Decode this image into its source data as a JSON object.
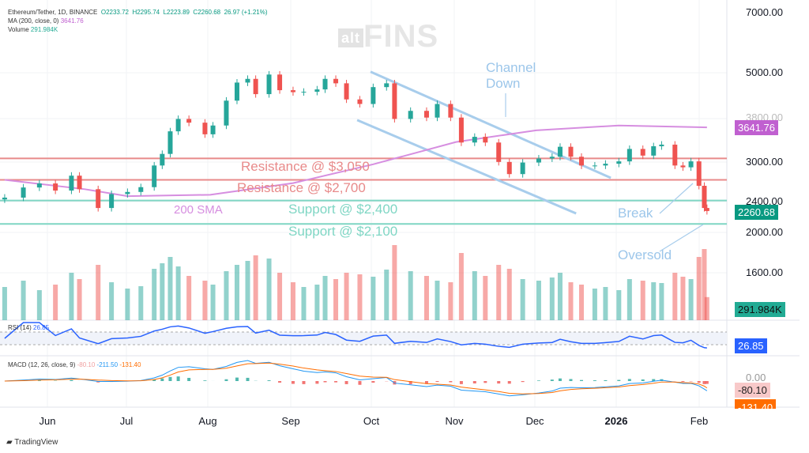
{
  "header": {
    "symbol": "Ethereum/Tether, 1D, BINANCE",
    "open": "O2233.72",
    "high": "H2295.74",
    "low": "L2223.89",
    "close": "C2260.68",
    "change": "26.97 (+1.21%)",
    "ma_label": "MA (200, close, 0)",
    "ma_value": "3641.76",
    "volume_label": "Volume",
    "volume_value": "291.984K",
    "rsi_label": "RSI (14)",
    "rsi_value": "26.85",
    "macd_label": "MACD (12, 26, close, 9)",
    "macd_hist": "-80.10",
    "macd_line": "-211.50",
    "macd_signal": "-131.40"
  },
  "watermark": "altFINS",
  "footer": "TradingView",
  "colors": {
    "up": "#26a69a",
    "down": "#ef5350",
    "sma": "#d68ee0",
    "resistance": "#e88a8a",
    "support": "#7fd6c4",
    "channel": "#a8cdec",
    "rsi": "#2962ff",
    "macd": "#2196f3",
    "signal": "#ff6d00"
  },
  "right_axis": {
    "labels": [
      "7000.00",
      "5000.00",
      "3800.00",
      "3000.00",
      "2400.00",
      "2000.00",
      "1600.00"
    ],
    "sma_tag": "3641.76",
    "price_tag": "2260.68",
    "volume_tag": "291.984K",
    "rsi_tag": "26.85",
    "macd_zero": "0.00",
    "macd_hist_tag": "-80.10",
    "macd_signal_tag": "-131.40"
  },
  "annotations": {
    "channel": "Channel\nDown",
    "break": "Break",
    "oversold": "Oversold",
    "sma": "200 SMA",
    "res1": "Resistance @ $3,050",
    "res2": "Resistance @ $2,700",
    "sup1": "Support @ $2,400",
    "sup2": "Support @ $2,100"
  },
  "chart_data": {
    "type": "candlestick",
    "scale": "log",
    "ylim": [
      1600,
      7000
    ],
    "x_ticks": [
      "Jun",
      "Jul",
      "Aug",
      "Sep",
      "Oct",
      "Nov",
      "Dec",
      "2026",
      "Feb"
    ],
    "dates": [
      "2025-05-16",
      "2025-05-23",
      "2025-05-29",
      "2025-06-04",
      "2025-06-10",
      "2025-06-13",
      "2025-06-20",
      "2025-06-25",
      "2025-07-01",
      "2025-07-06",
      "2025-07-11",
      "2025-07-14",
      "2025-07-17",
      "2025-07-20",
      "2025-07-24",
      "2025-07-30",
      "2025-08-02",
      "2025-08-07",
      "2025-08-11",
      "2025-08-15",
      "2025-08-18",
      "2025-08-23",
      "2025-08-27",
      "2025-09-01",
      "2025-09-05",
      "2025-09-10",
      "2025-09-13",
      "2025-09-17",
      "2025-09-21",
      "2025-09-26",
      "2025-10-01",
      "2025-10-06",
      "2025-10-09",
      "2025-10-15",
      "2025-10-21",
      "2025-10-25",
      "2025-10-30",
      "2025-11-03",
      "2025-11-08",
      "2025-11-12",
      "2025-11-17",
      "2025-11-21",
      "2025-11-26",
      "2025-12-02",
      "2025-12-07",
      "2025-12-10",
      "2025-12-14",
      "2025-12-18",
      "2025-12-23",
      "2025-12-27",
      "2026-01-01",
      "2026-01-05",
      "2026-01-10",
      "2026-01-14",
      "2026-01-17",
      "2026-01-22",
      "2026-01-25",
      "2026-01-28",
      "2026-01-31",
      "2026-02-02",
      "2026-02-03"
    ],
    "close": [
      2440,
      2585,
      2645,
      2540,
      2765,
      2560,
      2300,
      2490,
      2520,
      2590,
      2930,
      3130,
      3560,
      3820,
      3740,
      3500,
      3680,
      4240,
      4700,
      4800,
      4400,
      4920,
      4500,
      4450,
      4460,
      4520,
      4800,
      4680,
      4270,
      4160,
      4580,
      4680,
      3820,
      4000,
      3850,
      4160,
      3850,
      3340,
      3450,
      3340,
      2990,
      2790,
      2980,
      3050,
      3080,
      3260,
      3080,
      2930,
      2930,
      2960,
      3000,
      3220,
      3100,
      3270,
      3300,
      2930,
      2900,
      3000,
      2610,
      2300,
      2260.68
    ],
    "volume_k": [
      420,
      500,
      380,
      450,
      600,
      520,
      700,
      480,
      400,
      430,
      650,
      720,
      800,
      680,
      560,
      500,
      450,
      620,
      700,
      750,
      820,
      780,
      600,
      480,
      420,
      450,
      560,
      520,
      600,
      580,
      550,
      640,
      950,
      620,
      560,
      500,
      480,
      850,
      620,
      560,
      700,
      650,
      520,
      500,
      540,
      600,
      480,
      450,
      400,
      420,
      380,
      520,
      500,
      480,
      470,
      600,
      550,
      520,
      800,
      900,
      291.984
    ],
    "sma200": {
      "dates": [
        "2025-05-16",
        "2025-06-15",
        "2025-07-01",
        "2025-08-01",
        "2025-09-01",
        "2025-10-01",
        "2025-11-01",
        "2025-12-01",
        "2026-01-01",
        "2026-02-03"
      ],
      "values": [
        2700,
        2560,
        2460,
        2480,
        2650,
        2950,
        3350,
        3580,
        3680,
        3641.76
      ]
    },
    "levels": [
      {
        "price": 3050,
        "label": "Resistance @ $3,050",
        "kind": "resistance"
      },
      {
        "price": 2700,
        "label": "Resistance @ $2,700",
        "kind": "resistance"
      },
      {
        "price": 2400,
        "label": "Support @ $2,400",
        "kind": "support"
      },
      {
        "price": 2100,
        "label": "Support @ $2,100",
        "kind": "support"
      }
    ],
    "channel": {
      "upper": [
        [
          "2025-09-30",
          5000
        ],
        [
          "2025-12-29",
          2730
        ]
      ],
      "lower": [
        [
          "2025-09-25",
          3795
        ],
        [
          "2025-12-16",
          2230
        ]
      ]
    }
  }
}
